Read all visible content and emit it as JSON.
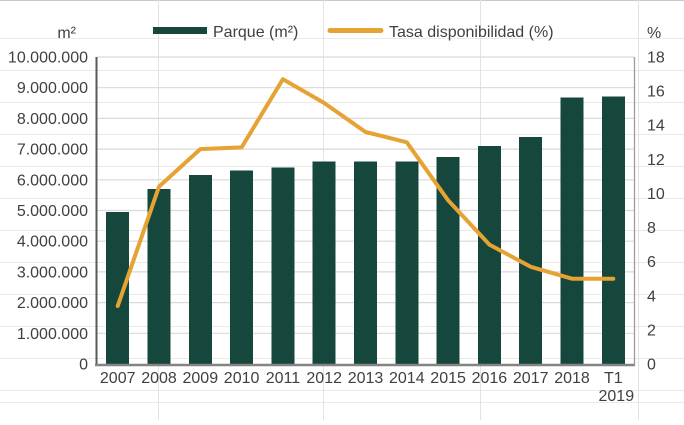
{
  "chart_data": {
    "type": "bar",
    "subtype": "combo-bar-line",
    "title": "",
    "categories": [
      "2007",
      "2008",
      "2009",
      "2010",
      "2011",
      "2012",
      "2013",
      "2014",
      "2015",
      "2016",
      "2017",
      "2018",
      "T1 2019"
    ],
    "series": [
      {
        "name": "Parque (m²)",
        "type": "bar",
        "axis": "left",
        "color": "#16473C",
        "values": [
          4950000,
          5700000,
          6150000,
          6300000,
          6400000,
          6600000,
          6600000,
          6600000,
          6750000,
          7100000,
          7400000,
          8680000,
          8720000
        ]
      },
      {
        "name": "Tasa disponibilidad (%)",
        "type": "line",
        "axis": "right",
        "color": "#E6A233",
        "values": [
          3.4,
          10.4,
          12.6,
          12.7,
          16.7,
          15.3,
          13.6,
          13.0,
          9.6,
          7.0,
          5.7,
          5.0,
          5.0
        ]
      }
    ],
    "left_axis": {
      "unit_label": "m²",
      "min": 0,
      "max": 10000000,
      "step": 1000000,
      "tick_labels": [
        "0",
        "1.000.000",
        "2.000.000",
        "3.000.000",
        "4.000.000",
        "5.000.000",
        "6.000.000",
        "7.000.000",
        "8.000.000",
        "9.000.000",
        "10.000.000"
      ]
    },
    "right_axis": {
      "unit_label": "%",
      "min": 0,
      "max": 18,
      "step": 2,
      "tick_labels": [
        "0",
        "2",
        "4",
        "6",
        "8",
        "10",
        "12",
        "14",
        "16",
        "18"
      ]
    },
    "legend_position": "top",
    "grid": true
  },
  "colors": {
    "bar": "#16473C",
    "line": "#E6A233",
    "gridline": "#D9D9D9",
    "sheet_row": "#EAEAEA",
    "sheet_col": "#E2E2E2",
    "axis_left": "#595959",
    "axis_bottom": "#848484",
    "axis_right": "#9C9C9C",
    "text": "#404040"
  }
}
